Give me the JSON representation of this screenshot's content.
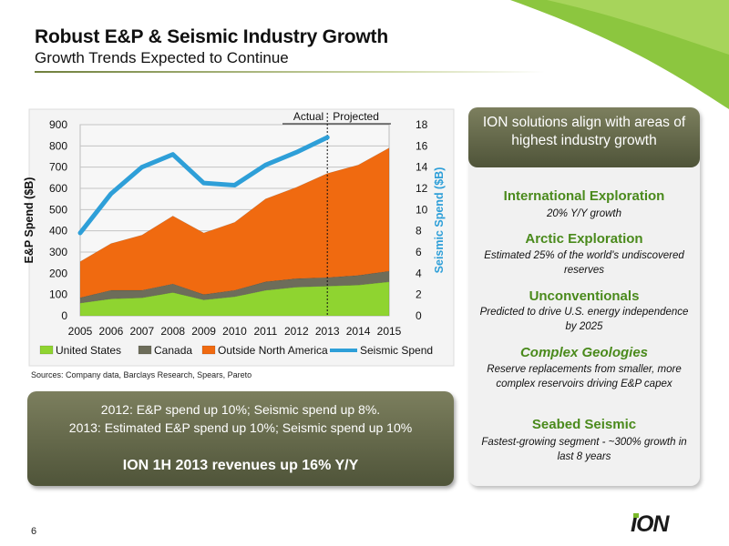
{
  "slide": {
    "title": "Robust E&P & Seismic Industry Growth",
    "subtitle": "Growth Trends Expected to Continue",
    "sources": "Sources:  Company data, Barclays Research, Spears, Pareto",
    "page_number": "6",
    "logo_text": "ION"
  },
  "chart_data": {
    "type": "area",
    "x": [
      "2005",
      "2006",
      "2007",
      "2008",
      "2009",
      "2010",
      "2011",
      "2012",
      "2013",
      "2014",
      "2015"
    ],
    "ylabel": "E&P Spend ($B)",
    "y2label": "Seismic Spend ($B)",
    "ylim": [
      0,
      900
    ],
    "y2lim": [
      0,
      18
    ],
    "yticks": [
      "0",
      "100",
      "200",
      "300",
      "400",
      "500",
      "600",
      "700",
      "800",
      "900"
    ],
    "y2ticks": [
      "0",
      "2",
      "4",
      "6",
      "8",
      "10",
      "12",
      "14",
      "16",
      "18"
    ],
    "annotations": {
      "actual": "Actual",
      "projected": "Projected"
    },
    "divider_after_index": 8,
    "stacked_series": [
      {
        "name": "United States",
        "color": "#8fd430",
        "values": [
          60,
          80,
          85,
          110,
          75,
          90,
          120,
          135,
          140,
          145,
          160
        ]
      },
      {
        "name": "Canada",
        "color": "#6d6d5a",
        "values": [
          25,
          40,
          35,
          40,
          25,
          30,
          40,
          40,
          40,
          45,
          50
        ]
      },
      {
        "name": "Outside North America",
        "color": "#f06a10",
        "values": [
          170,
          220,
          260,
          320,
          290,
          320,
          390,
          430,
          490,
          520,
          580
        ]
      }
    ],
    "line_series": {
      "name": "Seismic Spend",
      "color": "#2e9fd8",
      "axis": "right",
      "x_count": 9,
      "values": [
        7.8,
        11.5,
        14.0,
        15.2,
        12.5,
        12.3,
        14.2,
        15.4,
        16.8
      ]
    },
    "legend": [
      "United States",
      "Canada",
      "Outside North America",
      "Seismic Spend"
    ],
    "legend_position": "bottom",
    "grid": true
  },
  "summary_box": {
    "line1": "2012:   E&P spend up 10%; Seismic spend up 8%.",
    "line2": "2013:  Estimated E&P spend up 10%; Seismic spend up 10%",
    "line3": "ION 1H 2013 revenues up 16% Y/Y"
  },
  "right_panel": {
    "header": "ION solutions align with areas of highest industry growth",
    "items": [
      {
        "title": "International Exploration",
        "desc": "20% Y/Y growth"
      },
      {
        "title": "Arctic Exploration",
        "desc": "Estimated 25% of the world's undiscovered reserves"
      },
      {
        "title": "Unconventionals",
        "desc": "Predicted to drive U.S. energy independence by 2025"
      },
      {
        "title": "Complex Geologies",
        "desc": "Reserve replacements from smaller, more complex reservoirs driving E&P capex"
      },
      {
        "title": "Seabed Seismic",
        "desc": "Fastest-growing segment - ~300% growth in last 8 years"
      }
    ]
  }
}
